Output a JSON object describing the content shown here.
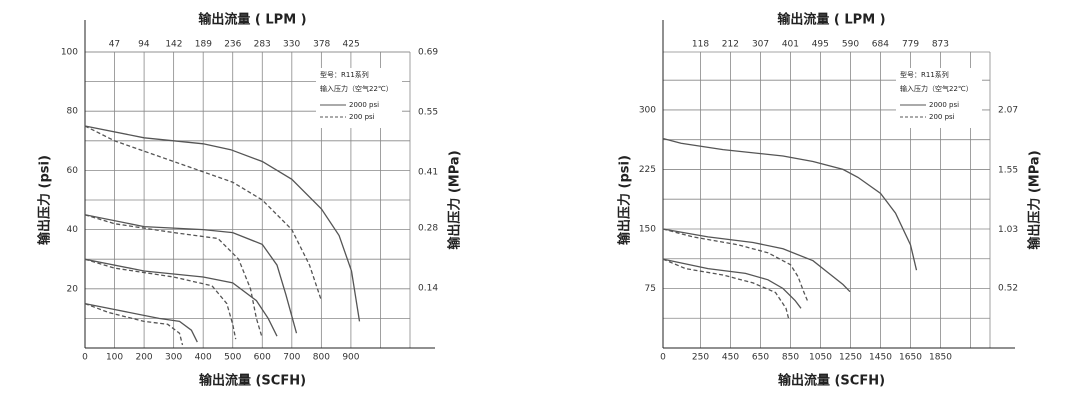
{
  "chart_data": [
    {
      "type": "line",
      "title": "输出流量 ( LPM )",
      "x_label": "输出流量 (SCFH)",
      "y_label": "输出压力 (psi)",
      "y2_label": "输出压力 (MPa)",
      "annotations": [
        "型号：R11系列",
        "输入压力（空气22℃）"
      ],
      "xlim": [
        0,
        1100
      ],
      "xticks": [
        0,
        100,
        200,
        300,
        400,
        500,
        600,
        700,
        800,
        900
      ],
      "x2lim": [
        0,
        519
      ],
      "x2ticks": [
        47,
        94,
        142,
        189,
        236,
        283,
        330,
        378,
        425
      ],
      "ylim": [
        0,
        100
      ],
      "yticks": [
        20,
        40,
        60,
        80,
        100
      ],
      "y2lim": [
        0,
        0.69
      ],
      "y2ticks": [
        0.14,
        0.28,
        0.41,
        0.55,
        0.69
      ],
      "grid": true,
      "series": [
        {
          "name": "2000 psi",
          "color": "#555",
          "dashed": false,
          "x": [
            0,
            200,
            400,
            493,
            600,
            700,
            800,
            860,
            902,
            929
          ],
          "values": [
            75,
            71,
            69,
            67,
            63,
            57,
            47,
            38,
            26,
            9
          ]
        },
        {
          "name": "200 psi",
          "color": "#555",
          "dashed": true,
          "x": [
            0,
            100,
            300,
            500,
            600,
            700,
            760,
            800
          ],
          "values": [
            75,
            70,
            63,
            56,
            50,
            40,
            28,
            16
          ]
        },
        {
          "name": "2000 psi",
          "color": "#555",
          "dashed": false,
          "x": [
            0,
            200,
            400,
            500,
            600,
            650,
            680,
            716
          ],
          "values": [
            45,
            41,
            40,
            39,
            35,
            28,
            18,
            5
          ]
        },
        {
          "name": "200 psi",
          "color": "#555",
          "dashed": true,
          "x": [
            0,
            100,
            300,
            450,
            520,
            560,
            580,
            598
          ],
          "values": [
            45,
            42,
            39,
            37,
            30,
            20,
            10,
            4
          ]
        },
        {
          "name": "2000 psi",
          "color": "#555",
          "dashed": false,
          "x": [
            0,
            200,
            400,
            500,
            580,
            620,
            650
          ],
          "values": [
            30,
            26,
            24,
            22,
            16,
            10,
            4
          ]
        },
        {
          "name": "200 psi",
          "color": "#555",
          "dashed": true,
          "x": [
            0,
            100,
            300,
            430,
            480,
            500,
            510
          ],
          "values": [
            30,
            27,
            24,
            21,
            15,
            8,
            3
          ]
        },
        {
          "name": "2000 psi",
          "color": "#555",
          "dashed": false,
          "x": [
            0,
            100,
            250,
            320,
            360,
            380
          ],
          "values": [
            15,
            13,
            10,
            9,
            6,
            2
          ]
        },
        {
          "name": "200 psi",
          "color": "#555",
          "dashed": true,
          "x": [
            0,
            80,
            200,
            280,
            320,
            330
          ],
          "values": [
            15,
            12,
            9,
            8,
            5,
            1
          ]
        }
      ]
    },
    {
      "type": "line",
      "title": "输出流量 ( LPM )",
      "x_label": "输出流量 (SCFH)",
      "y_label": "输出压力 (psi)",
      "y2_label": "输出压力 (MPa)",
      "annotations": [
        "型号：R11系列",
        "输入压力（空气22℃）"
      ],
      "xlim": [
        0,
        2180
      ],
      "xticks": [
        0,
        250,
        450,
        650,
        850,
        1050,
        1250,
        1450,
        1650,
        1850
      ],
      "x2lim": [
        0,
        1029
      ],
      "x2ticks": [
        118,
        212,
        307,
        401,
        495,
        590,
        684,
        779,
        873
      ],
      "ylim": [
        0,
        373
      ],
      "yticks": [
        75,
        150,
        225,
        300
      ],
      "y2lim": [
        0,
        2.574
      ],
      "y2ticks": [
        0.52,
        1.03,
        1.55,
        2.07
      ],
      "grid": true,
      "series": [
        {
          "name": "2000 psi",
          "color": "#555",
          "dashed": false,
          "x": [
            0,
            120,
            400,
            800,
            1000,
            1200,
            1300,
            1450,
            1550,
            1650,
            1690
          ],
          "values": [
            264,
            258,
            250,
            242,
            235,
            225,
            215,
            195,
            170,
            130,
            98
          ]
        },
        {
          "name": "2000 psi",
          "color": "#555",
          "dashed": false,
          "x": [
            0,
            300,
            600,
            800,
            1000,
            1100,
            1200,
            1247
          ],
          "values": [
            150,
            140,
            133,
            125,
            110,
            95,
            80,
            71
          ]
        },
        {
          "name": "200 psi",
          "color": "#555",
          "dashed": true,
          "x": [
            0,
            200,
            500,
            700,
            850,
            900,
            940,
            967
          ],
          "values": [
            150,
            140,
            130,
            120,
            105,
            90,
            70,
            58
          ]
        },
        {
          "name": "2000 psi",
          "color": "#555",
          "dashed": false,
          "x": [
            0,
            300,
            550,
            700,
            800,
            880,
            920
          ],
          "values": [
            112,
            100,
            94,
            86,
            75,
            60,
            50
          ]
        },
        {
          "name": "200 psi",
          "color": "#555",
          "dashed": true,
          "x": [
            0,
            150,
            400,
            600,
            750,
            820,
            840
          ],
          "values": [
            112,
            100,
            92,
            82,
            70,
            50,
            35
          ]
        }
      ]
    }
  ]
}
